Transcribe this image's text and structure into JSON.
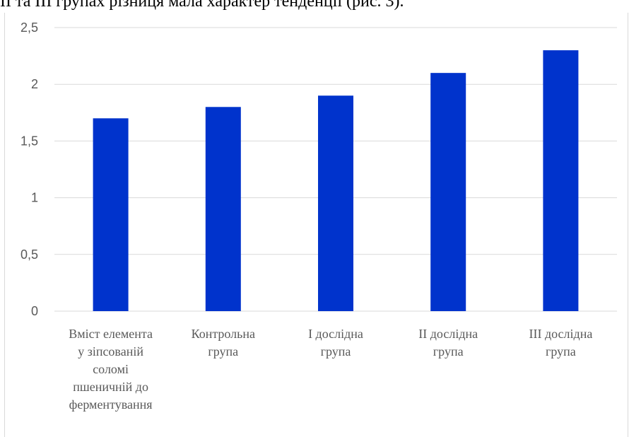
{
  "header_text": "ІІ та ІІІ групах різниця мала характер тенденції (рис. 3).",
  "chart_data": {
    "type": "bar",
    "categories": [
      [
        "Вміст елемента",
        "у зіпсованій",
        "соломі",
        "пшеничній до",
        "ферментування"
      ],
      [
        "Контрольна",
        "група"
      ],
      [
        "І дослідна",
        "група"
      ],
      [
        "ІІ дослідна",
        "група"
      ],
      [
        "ІІІ дослідна",
        "група"
      ]
    ],
    "values": [
      1.7,
      1.8,
      1.9,
      2.1,
      2.3
    ],
    "ylim": [
      0,
      2.5
    ],
    "yticks": [
      "0",
      "0,5",
      "1",
      "1,5",
      "2",
      "2,5"
    ],
    "grid": true,
    "legend": "none",
    "title": "",
    "xlabel": "",
    "ylabel": "",
    "bar_color": "#0033cc",
    "grid_color": "#d9d9d9",
    "label_color": "#595959"
  }
}
